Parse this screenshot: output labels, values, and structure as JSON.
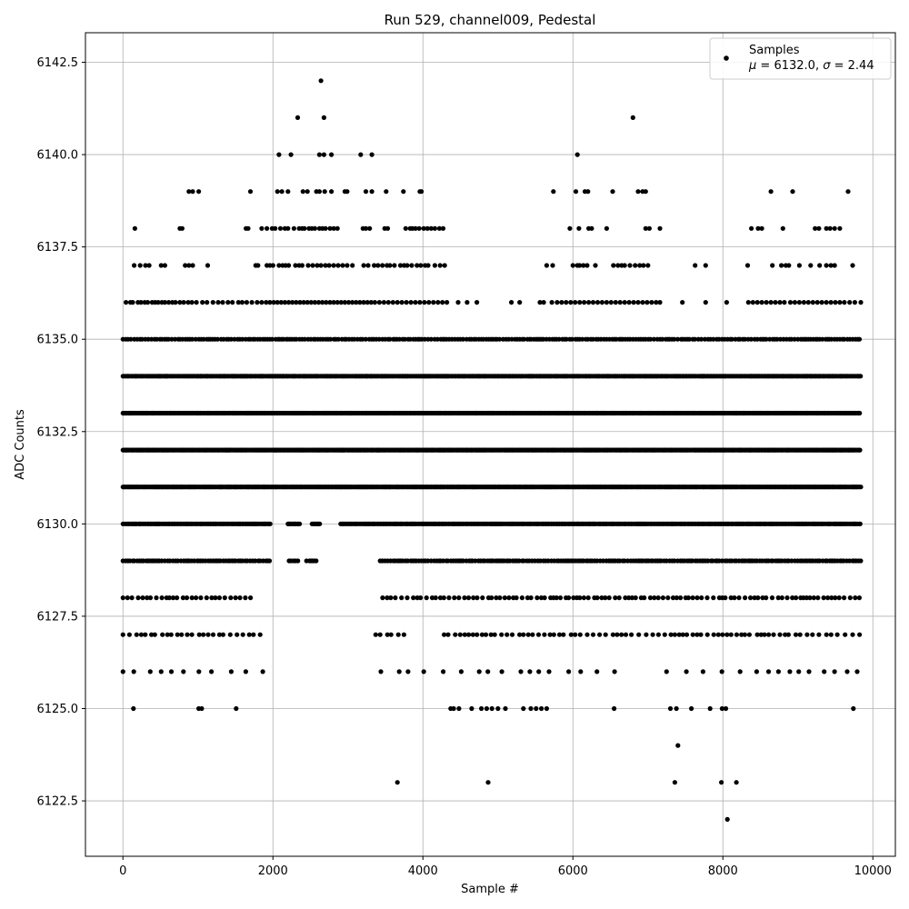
{
  "chart_data": {
    "type": "scatter",
    "title": "Run 529, channel009, Pedestal",
    "xlabel": "Sample #",
    "ylabel": "ADC Counts",
    "xlim": [
      -500,
      10300
    ],
    "ylim": [
      6121,
      6143.3
    ],
    "xticks": [
      0,
      2000,
      4000,
      6000,
      8000,
      10000
    ],
    "xtick_labels": [
      "0",
      "2000",
      "4000",
      "6000",
      "8000",
      "10000"
    ],
    "yticks": [
      6122.5,
      6125.0,
      6127.5,
      6130.0,
      6132.5,
      6135.0,
      6137.5,
      6140.0,
      6142.5
    ],
    "ytick_labels": [
      "6122.5",
      "6125.0",
      "6127.5",
      "6130.0",
      "6132.5",
      "6135.0",
      "6137.5",
      "6140.0",
      "6142.5"
    ],
    "grid": true,
    "legend": {
      "position": "upper-right",
      "series_label": "Samples",
      "stats_mu": "6132.0",
      "stats_sigma": "2.44"
    },
    "series": [
      {
        "name": "Samples",
        "color": "#000000",
        "sample_count": 9840,
        "levels": [
          {
            "y": 6142,
            "x": [
              2640
            ]
          },
          {
            "y": 6141,
            "x": [
              2330,
              2680,
              6800
            ]
          },
          {
            "y": 6140,
            "x": [
              2080,
              2240,
              2620,
              2680,
              2780,
              3170,
              3320,
              6060
            ]
          },
          {
            "y": 6139,
            "x": [
              880,
              930,
              1010,
              1700,
              2060,
              2120,
              2200,
              2400,
              2460,
              2580,
              2620,
              2690,
              2780,
              2960,
              2990,
              3240,
              3320,
              3510,
              3740,
              3960,
              3980,
              5740,
              6040,
              6160,
              6200,
              6530,
              6870,
              6930,
              6970,
              8640,
              8930,
              9670
            ]
          },
          {
            "y": 6138,
            "x": [
              160,
              760,
              790,
              1640,
              1670,
              1850,
              1920,
              1990,
              2030,
              2100,
              2160,
              2200,
              2280,
              2350,
              2390,
              2420,
              2480,
              2520,
              2560,
              2620,
              2660,
              2700,
              2760,
              2810,
              2860,
              3200,
              3240,
              3290,
              3490,
              3530,
              3770,
              3830,
              3860,
              3900,
              3950,
              4010,
              4060,
              4110,
              4160,
              4220,
              4270,
              5960,
              6080,
              6210,
              6250,
              6450,
              6970,
              7020,
              7160,
              8380,
              8470,
              8520,
              8800,
              9230,
              9280,
              9380,
              9430,
              9490,
              9560
            ]
          },
          {
            "y": 6137,
            "x": [
              150,
              230,
              300,
              350,
              510,
              560,
              830,
              880,
              930,
              1130,
              1770,
              1800,
              1920,
              1960,
              2000,
              2080,
              2130,
              2170,
              2210,
              2300,
              2350,
              2390,
              2470,
              2530,
              2590,
              2640,
              2700,
              2750,
              2810,
              2870,
              2930,
              2990,
              3060,
              3210,
              3270,
              3350,
              3400,
              3460,
              3520,
              3560,
              3620,
              3700,
              3750,
              3790,
              3850,
              3920,
              3970,
              4030,
              4070,
              4160,
              4230,
              4290,
              5650,
              5730,
              6000,
              6060,
              6090,
              6140,
              6190,
              6300,
              6540,
              6600,
              6650,
              6690,
              6760,
              6830,
              6890,
              6940,
              7000,
              7630,
              7770,
              8330,
              8660,
              8780,
              8840,
              8880,
              9020,
              9170,
              9290,
              9380,
              9440,
              9490,
              9730
            ]
          },
          {
            "y": 6136,
            "x": [
              40,
              100,
              130,
              200,
              240,
              290,
              330,
              390,
              430,
              470,
              520,
              560,
              610,
              660,
              700,
              760,
              810,
              870,
              920,
              980,
              1060,
              1120,
              1200,
              1270,
              1330,
              1400,
              1460,
              1540,
              1590,
              1650,
              1720,
              1790,
              1850,
              1910,
              1960,
              2010,
              2060,
              2110,
              2160,
              2210,
              2260,
              2310,
              2360,
              2410,
              2460,
              2510,
              2560,
              2610,
              2660,
              2710,
              2760,
              2810,
              2860,
              2910,
              2960,
              3010,
              3060,
              3110,
              3160,
              3210,
              3260,
              3310,
              3360,
              3420,
              3480,
              3540,
              3600,
              3660,
              3720,
              3780,
              3840,
              3900,
              3960,
              4020,
              4080,
              4140,
              4200,
              4260,
              4320,
              4470,
              4590,
              4720,
              5180,
              5290,
              5560,
              5610,
              5720,
              5790,
              5850,
              5910,
              5970,
              6030,
              6090,
              6150,
              6210,
              6270,
              6330,
              6390,
              6450,
              6510,
              6570,
              6630,
              6690,
              6750,
              6810,
              6870,
              6930,
              6990,
              7050,
              7110,
              7160,
              7460,
              7770,
              8050,
              8340,
              8400,
              8460,
              8520,
              8580,
              8640,
              8700,
              8760,
              8820,
              8900,
              8960,
              9020,
              9080,
              9140,
              9200,
              9260,
              9320,
              9380,
              9440,
              9500,
              9560,
              9620,
              9690,
              9760,
              9840
            ]
          }
        ],
        "outliers_low": [
          {
            "y": 6125,
            "x": [
              140,
              1010,
              1050,
              1510,
              4370,
              4410,
              4480,
              4650,
              4780,
              4850,
              4920,
              5000,
              5100,
              5340,
              5440,
              5510,
              5580,
              5650,
              6550,
              7300,
              7380,
              7580,
              7830,
              7990,
              8040,
              9740
            ]
          },
          {
            "y": 6124,
            "x": [
              7400
            ]
          },
          {
            "y": 6123,
            "x": [
              3660,
              4870,
              7360,
              7980,
              8180
            ]
          },
          {
            "y": 6122,
            "x": [
              8060
            ]
          }
        ]
      }
    ]
  }
}
